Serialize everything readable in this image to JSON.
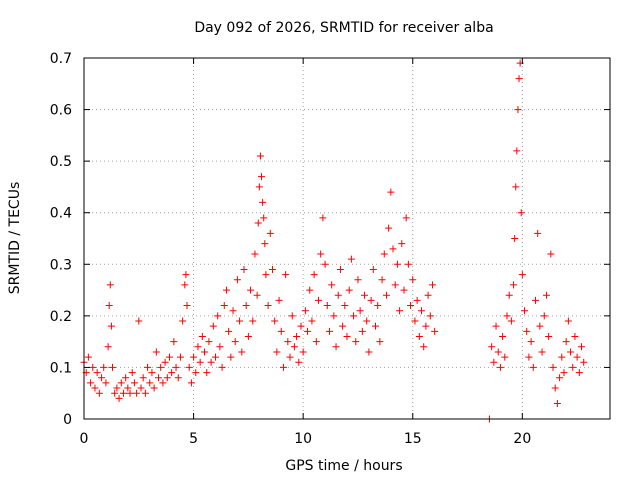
{
  "chart_data": {
    "type": "scatter",
    "title": "Day 092 of 2026, SRMTID for receiver alba",
    "xlabel": "GPS time / hours",
    "ylabel": "SRMTID / TECUs",
    "xlim": [
      0,
      24
    ],
    "ylim": [
      0,
      0.7
    ],
    "xticks": [
      0,
      5,
      10,
      15,
      20
    ],
    "yticks": [
      0,
      0.1,
      0.2,
      0.3,
      0.4,
      0.5,
      0.6,
      0.7
    ],
    "xtick_labels": [
      "0",
      "5",
      "10",
      "15",
      "20"
    ],
    "ytick_labels": [
      "0",
      "0.1",
      "0.2",
      "0.3",
      "0.4",
      "0.5",
      "0.6",
      "0.7"
    ],
    "grid": true,
    "marker": "+",
    "marker_color": "#ff0000",
    "series": [
      {
        "name": "SRMTID",
        "points": [
          [
            0.0,
            0.11
          ],
          [
            0.1,
            0.09
          ],
          [
            0.2,
            0.12
          ],
          [
            0.3,
            0.07
          ],
          [
            0.4,
            0.1
          ],
          [
            0.5,
            0.06
          ],
          [
            0.6,
            0.09
          ],
          [
            0.7,
            0.05
          ],
          [
            0.8,
            0.08
          ],
          [
            0.9,
            0.1
          ],
          [
            1.0,
            0.07
          ],
          [
            1.1,
            0.14
          ],
          [
            1.15,
            0.22
          ],
          [
            1.2,
            0.26
          ],
          [
            1.25,
            0.18
          ],
          [
            1.3,
            0.1
          ],
          [
            1.4,
            0.05
          ],
          [
            1.5,
            0.06
          ],
          [
            1.6,
            0.04
          ],
          [
            1.7,
            0.07
          ],
          [
            1.8,
            0.05
          ],
          [
            1.9,
            0.08
          ],
          [
            2.0,
            0.06
          ],
          [
            2.1,
            0.05
          ],
          [
            2.2,
            0.09
          ],
          [
            2.3,
            0.07
          ],
          [
            2.4,
            0.05
          ],
          [
            2.5,
            0.19
          ],
          [
            2.6,
            0.06
          ],
          [
            2.7,
            0.08
          ],
          [
            2.8,
            0.05
          ],
          [
            2.9,
            0.1
          ],
          [
            3.0,
            0.07
          ],
          [
            3.1,
            0.09
          ],
          [
            3.2,
            0.06
          ],
          [
            3.3,
            0.13
          ],
          [
            3.4,
            0.08
          ],
          [
            3.5,
            0.1
          ],
          [
            3.6,
            0.07
          ],
          [
            3.7,
            0.11
          ],
          [
            3.8,
            0.08
          ],
          [
            3.9,
            0.12
          ],
          [
            4.0,
            0.09
          ],
          [
            4.1,
            0.15
          ],
          [
            4.2,
            0.1
          ],
          [
            4.3,
            0.08
          ],
          [
            4.4,
            0.12
          ],
          [
            4.5,
            0.19
          ],
          [
            4.6,
            0.26
          ],
          [
            4.65,
            0.28
          ],
          [
            4.7,
            0.22
          ],
          [
            4.8,
            0.1
          ],
          [
            4.9,
            0.07
          ],
          [
            5.0,
            0.12
          ],
          [
            5.1,
            0.09
          ],
          [
            5.2,
            0.14
          ],
          [
            5.3,
            0.11
          ],
          [
            5.4,
            0.16
          ],
          [
            5.5,
            0.13
          ],
          [
            5.6,
            0.09
          ],
          [
            5.7,
            0.15
          ],
          [
            5.8,
            0.11
          ],
          [
            5.9,
            0.18
          ],
          [
            6.0,
            0.12
          ],
          [
            6.1,
            0.2
          ],
          [
            6.2,
            0.14
          ],
          [
            6.3,
            0.1
          ],
          [
            6.4,
            0.22
          ],
          [
            6.5,
            0.25
          ],
          [
            6.6,
            0.17
          ],
          [
            6.7,
            0.12
          ],
          [
            6.8,
            0.21
          ],
          [
            6.9,
            0.15
          ],
          [
            7.0,
            0.27
          ],
          [
            7.1,
            0.19
          ],
          [
            7.2,
            0.13
          ],
          [
            7.3,
            0.29
          ],
          [
            7.4,
            0.22
          ],
          [
            7.5,
            0.16
          ],
          [
            7.6,
            0.25
          ],
          [
            7.7,
            0.19
          ],
          [
            7.8,
            0.32
          ],
          [
            7.9,
            0.24
          ],
          [
            7.95,
            0.38
          ],
          [
            8.0,
            0.45
          ],
          [
            8.05,
            0.51
          ],
          [
            8.1,
            0.47
          ],
          [
            8.15,
            0.42
          ],
          [
            8.2,
            0.39
          ],
          [
            8.25,
            0.34
          ],
          [
            8.3,
            0.28
          ],
          [
            8.4,
            0.22
          ],
          [
            8.5,
            0.36
          ],
          [
            8.6,
            0.29
          ],
          [
            8.7,
            0.19
          ],
          [
            8.8,
            0.13
          ],
          [
            8.9,
            0.23
          ],
          [
            9.0,
            0.17
          ],
          [
            9.1,
            0.1
          ],
          [
            9.2,
            0.28
          ],
          [
            9.3,
            0.15
          ],
          [
            9.4,
            0.12
          ],
          [
            9.5,
            0.2
          ],
          [
            9.6,
            0.14
          ],
          [
            9.7,
            0.16
          ],
          [
            9.8,
            0.11
          ],
          [
            9.9,
            0.18
          ],
          [
            10.0,
            0.13
          ],
          [
            10.1,
            0.21
          ],
          [
            10.2,
            0.17
          ],
          [
            10.3,
            0.25
          ],
          [
            10.4,
            0.19
          ],
          [
            10.5,
            0.28
          ],
          [
            10.6,
            0.15
          ],
          [
            10.7,
            0.23
          ],
          [
            10.8,
            0.32
          ],
          [
            10.9,
            0.39
          ],
          [
            11.0,
            0.3
          ],
          [
            11.1,
            0.22
          ],
          [
            11.2,
            0.17
          ],
          [
            11.3,
            0.26
          ],
          [
            11.4,
            0.2
          ],
          [
            11.5,
            0.14
          ],
          [
            11.6,
            0.24
          ],
          [
            11.7,
            0.29
          ],
          [
            11.8,
            0.18
          ],
          [
            11.9,
            0.22
          ],
          [
            12.0,
            0.16
          ],
          [
            12.1,
            0.25
          ],
          [
            12.2,
            0.31
          ],
          [
            12.3,
            0.2
          ],
          [
            12.4,
            0.15
          ],
          [
            12.5,
            0.27
          ],
          [
            12.6,
            0.21
          ],
          [
            12.7,
            0.17
          ],
          [
            12.8,
            0.24
          ],
          [
            12.9,
            0.19
          ],
          [
            13.0,
            0.13
          ],
          [
            13.1,
            0.23
          ],
          [
            13.2,
            0.29
          ],
          [
            13.3,
            0.18
          ],
          [
            13.4,
            0.22
          ],
          [
            13.5,
            0.15
          ],
          [
            13.6,
            0.27
          ],
          [
            13.7,
            0.32
          ],
          [
            13.8,
            0.24
          ],
          [
            13.9,
            0.37
          ],
          [
            14.0,
            0.44
          ],
          [
            14.1,
            0.33
          ],
          [
            14.2,
            0.26
          ],
          [
            14.3,
            0.3
          ],
          [
            14.4,
            0.21
          ],
          [
            14.5,
            0.34
          ],
          [
            14.6,
            0.25
          ],
          [
            14.7,
            0.39
          ],
          [
            14.8,
            0.3
          ],
          [
            14.9,
            0.22
          ],
          [
            15.0,
            0.27
          ],
          [
            15.1,
            0.19
          ],
          [
            15.2,
            0.23
          ],
          [
            15.3,
            0.16
          ],
          [
            15.4,
            0.21
          ],
          [
            15.5,
            0.14
          ],
          [
            15.6,
            0.18
          ],
          [
            15.7,
            0.24
          ],
          [
            15.8,
            0.2
          ],
          [
            15.9,
            0.26
          ],
          [
            16.0,
            0.17
          ],
          [
            18.5,
            0.0
          ],
          [
            18.6,
            0.14
          ],
          [
            18.7,
            0.11
          ],
          [
            18.8,
            0.18
          ],
          [
            18.9,
            0.13
          ],
          [
            19.0,
            0.1
          ],
          [
            19.1,
            0.16
          ],
          [
            19.2,
            0.12
          ],
          [
            19.3,
            0.2
          ],
          [
            19.4,
            0.24
          ],
          [
            19.5,
            0.19
          ],
          [
            19.6,
            0.26
          ],
          [
            19.65,
            0.35
          ],
          [
            19.7,
            0.45
          ],
          [
            19.75,
            0.52
          ],
          [
            19.8,
            0.6
          ],
          [
            19.85,
            0.66
          ],
          [
            19.9,
            0.69
          ],
          [
            19.95,
            0.4
          ],
          [
            20.0,
            0.28
          ],
          [
            20.1,
            0.21
          ],
          [
            20.2,
            0.17
          ],
          [
            20.3,
            0.12
          ],
          [
            20.4,
            0.15
          ],
          [
            20.5,
            0.1
          ],
          [
            20.6,
            0.23
          ],
          [
            20.7,
            0.36
          ],
          [
            20.8,
            0.18
          ],
          [
            20.9,
            0.13
          ],
          [
            21.0,
            0.2
          ],
          [
            21.1,
            0.24
          ],
          [
            21.2,
            0.16
          ],
          [
            21.3,
            0.32
          ],
          [
            21.4,
            0.1
          ],
          [
            21.5,
            0.06
          ],
          [
            21.6,
            0.03
          ],
          [
            21.7,
            0.08
          ],
          [
            21.8,
            0.12
          ],
          [
            21.9,
            0.09
          ],
          [
            22.0,
            0.15
          ],
          [
            22.1,
            0.19
          ],
          [
            22.2,
            0.13
          ],
          [
            22.3,
            0.1
          ],
          [
            22.4,
            0.16
          ],
          [
            22.5,
            0.12
          ],
          [
            22.6,
            0.09
          ],
          [
            22.7,
            0.14
          ],
          [
            22.8,
            0.11
          ]
        ]
      }
    ]
  }
}
